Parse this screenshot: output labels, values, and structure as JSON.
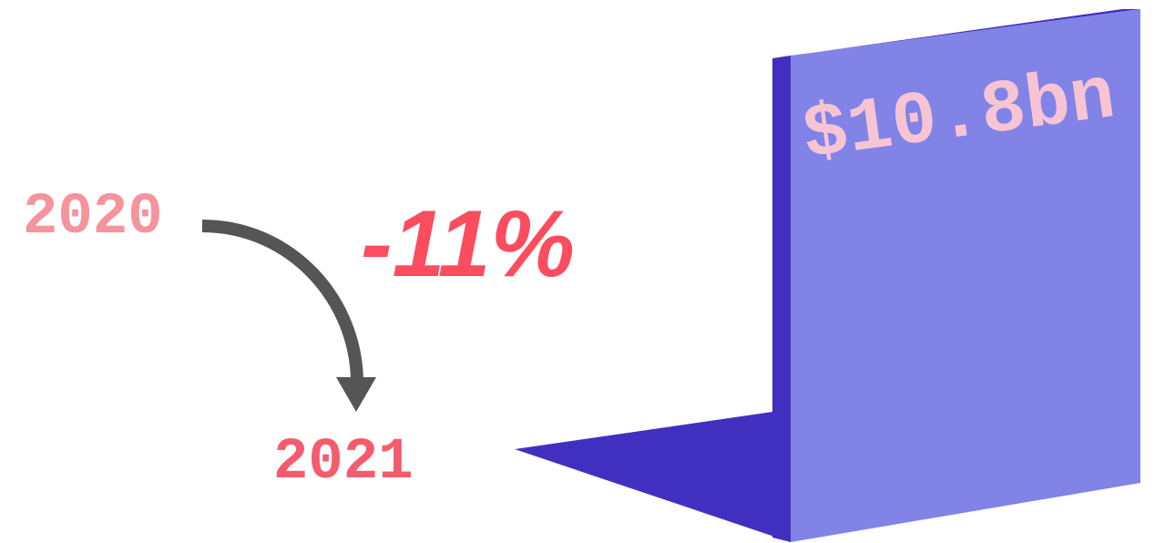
{
  "start_year": "2020",
  "end_year": "2021",
  "change": "-11%",
  "amount": "$10.8bn"
}
